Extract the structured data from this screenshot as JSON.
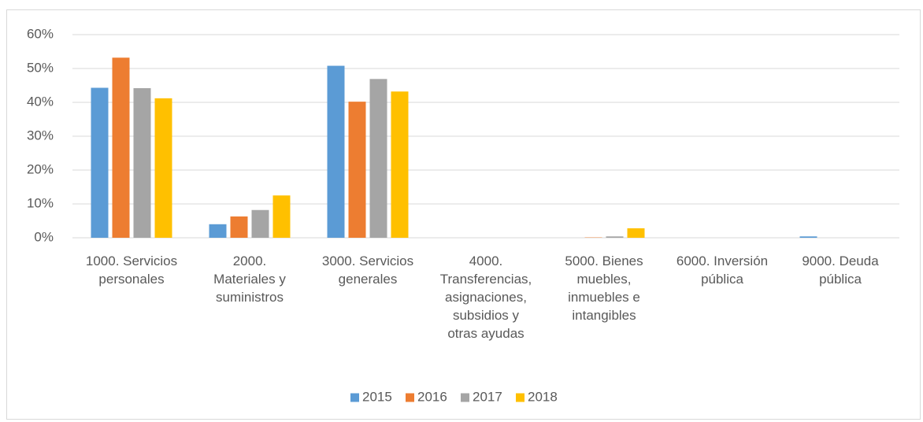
{
  "chart_data": {
    "type": "bar",
    "categories": [
      "1000. Servicios personales",
      "2000. Materiales y suministros",
      "3000. Servicios generales",
      "4000. Transferencias, asignaciones, subsidios y otras ayudas",
      "5000. Bienes muebles, inmuebles e intangibles",
      "6000. Inversión pública",
      "9000. Deuda pública"
    ],
    "series": [
      {
        "name": "2015",
        "color": "#5b9bd5",
        "values": [
          44.3,
          4,
          50.8,
          0,
          0,
          0,
          0.4
        ]
      },
      {
        "name": "2016",
        "color": "#ed7d31",
        "values": [
          53.2,
          6.3,
          40.2,
          0,
          0.1,
          0,
          0
        ]
      },
      {
        "name": "2017",
        "color": "#a5a5a5",
        "values": [
          44.2,
          8.2,
          46.9,
          0,
          0.4,
          0,
          0
        ]
      },
      {
        "name": "2018",
        "color": "#ffc000",
        "values": [
          41.2,
          12.5,
          43.2,
          0,
          2.8,
          0,
          0
        ]
      }
    ],
    "ylim": [
      0,
      60
    ],
    "yticks": [
      {
        "value": 0,
        "label": "0%"
      },
      {
        "value": 10,
        "label": "10%"
      },
      {
        "value": 20,
        "label": "20%"
      },
      {
        "value": 30,
        "label": "30%"
      },
      {
        "value": 40,
        "label": "40%"
      },
      {
        "value": 50,
        "label": "50%"
      },
      {
        "value": 60,
        "label": "60%"
      }
    ],
    "grid": true,
    "legend": "bottom"
  }
}
